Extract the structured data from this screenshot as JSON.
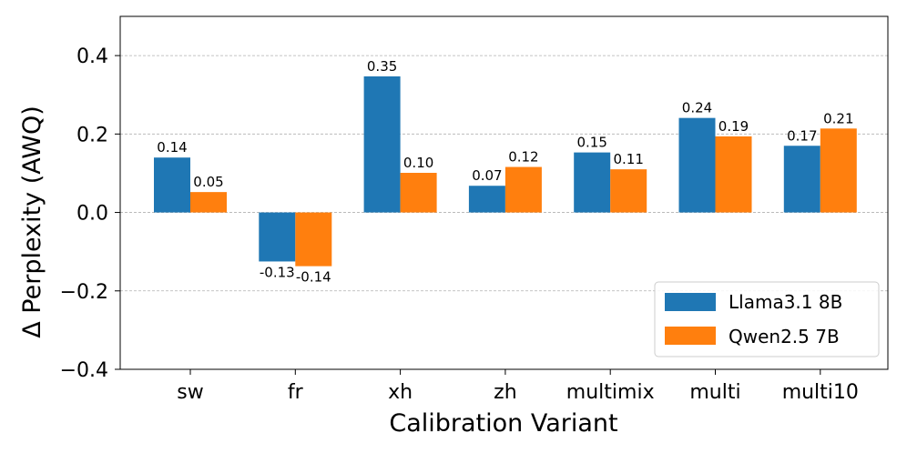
{
  "chart_data": {
    "type": "bar",
    "title": "",
    "xlabel": "Calibration Variant",
    "ylabel": "Δ Perplexity (AWQ)",
    "ylim": [
      -0.4,
      0.5
    ],
    "yticks": [
      -0.4,
      -0.2,
      0.0,
      0.2,
      0.4
    ],
    "ytick_labels": [
      "−0.4",
      "−0.2",
      "0.0",
      "0.2",
      "0.4"
    ],
    "grid": "horizontal dashed",
    "legend_position": "bottom-right",
    "categories": [
      "sw",
      "fr",
      "xh",
      "zh",
      "multimix",
      "multi",
      "multi10"
    ],
    "series": [
      {
        "name": "Llama3.1 8B",
        "color": "#1f77b4",
        "values": [
          0.14,
          -0.125,
          0.347,
          0.068,
          0.153,
          0.241,
          0.17
        ],
        "labels": [
          "0.14",
          "-0.13",
          "0.35",
          "0.07",
          "0.15",
          "0.24",
          "0.17"
        ]
      },
      {
        "name": "Qwen2.5 7B",
        "color": "#ff7f0e",
        "values": [
          0.052,
          -0.137,
          0.101,
          0.116,
          0.11,
          0.194,
          0.214
        ],
        "labels": [
          "0.05",
          "-0.14",
          "0.10",
          "0.12",
          "0.11",
          "0.19",
          "0.21"
        ]
      }
    ]
  }
}
